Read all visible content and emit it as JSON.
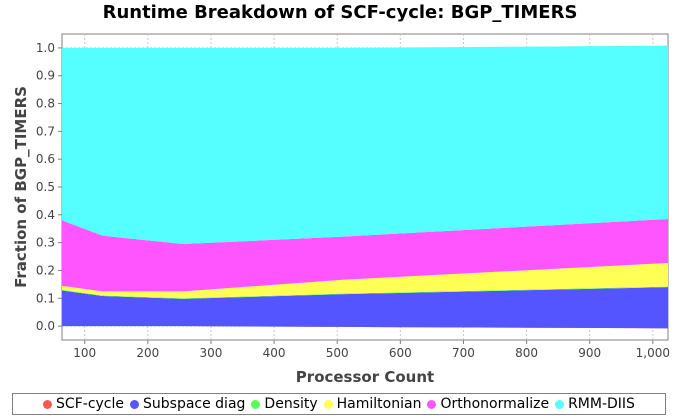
{
  "chart_data": {
    "type": "area",
    "stacked": true,
    "title": "Runtime Breakdown of SCF-cycle: BGP_TIMERS",
    "xlabel": "Processor Count",
    "ylabel": "Fraction of BGP_TIMERS",
    "xlim": [
      64,
      1024
    ],
    "ylim": [
      -0.05,
      1.05
    ],
    "x": [
      64,
      128,
      256,
      512,
      1024
    ],
    "x_ticks": [
      100,
      200,
      300,
      400,
      500,
      600,
      700,
      800,
      900,
      1000
    ],
    "x_tick_labels": [
      "100",
      "200",
      "300",
      "400",
      "500",
      "600",
      "700",
      "800",
      "900",
      "1,000"
    ],
    "y_ticks": [
      0.0,
      0.1,
      0.2,
      0.3,
      0.4,
      0.5,
      0.6,
      0.7,
      0.8,
      0.9,
      1.0
    ],
    "y_tick_labels": [
      "0.0",
      "0.1",
      "0.2",
      "0.3",
      "0.4",
      "0.5",
      "0.6",
      "0.7",
      "0.8",
      "0.9",
      "1.0"
    ],
    "grid": true,
    "legend_position": "bottom",
    "series": [
      {
        "name": "SCF-cycle",
        "color": "#ff5555",
        "values": [
          0.0,
          0.0,
          0.0,
          -0.003,
          -0.008
        ]
      },
      {
        "name": "Subspace diag",
        "color": "#5555ff",
        "values": [
          0.128,
          0.108,
          0.098,
          0.118,
          0.148
        ]
      },
      {
        "name": "Density",
        "color": "#55ff55",
        "values": [
          0.002,
          0.002,
          0.002,
          0.002,
          0.002
        ]
      },
      {
        "name": "Hamiltonian",
        "color": "#ffff55",
        "values": [
          0.015,
          0.015,
          0.025,
          0.05,
          0.085
        ]
      },
      {
        "name": "Orthonormalize",
        "color": "#ff55ff",
        "values": [
          0.235,
          0.2,
          0.17,
          0.155,
          0.158
        ]
      },
      {
        "name": "RMM-DIIS",
        "color": "#55ffff",
        "values": [
          0.62,
          0.675,
          0.705,
          0.678,
          0.623
        ]
      }
    ]
  }
}
